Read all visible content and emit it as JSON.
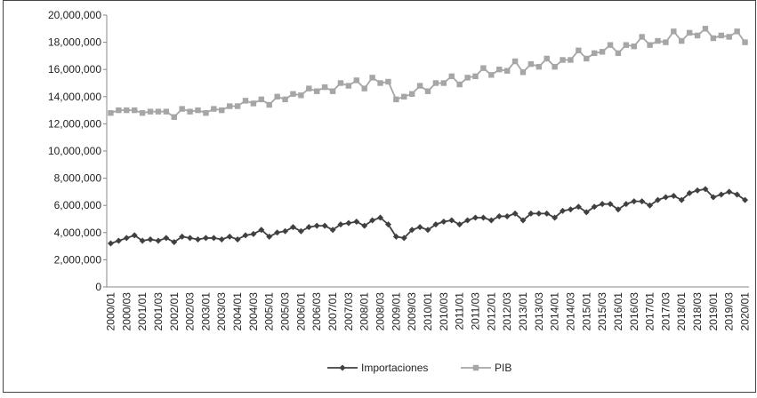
{
  "chart_data": {
    "type": "line",
    "categories": [
      "2000/01",
      null,
      "2000/03",
      null,
      "2001/01",
      null,
      "2001/03",
      null,
      "2002/01",
      null,
      "2002/03",
      null,
      "2003/01",
      null,
      "2003/03",
      null,
      "2004/01",
      null,
      "2004/03",
      null,
      "2005/01",
      null,
      "2005/03",
      null,
      "2006/01",
      null,
      "2006/03",
      null,
      "2007/01",
      null,
      "2007/03",
      null,
      "2008/01",
      null,
      "2008/03",
      null,
      "2009/01",
      null,
      "2009/03",
      null,
      "2010/01",
      null,
      "2010/03",
      null,
      "2011/01",
      null,
      "2011/03",
      null,
      "2012/01",
      null,
      "2012/03",
      null,
      "2013/01",
      null,
      "2013/03",
      null,
      "2014/01",
      null,
      "2014/03",
      null,
      "2015/01",
      null,
      "2015/03",
      null,
      "2016/01",
      null,
      "2016/03",
      null,
      "2017/01",
      null,
      "2017/03",
      null,
      "2018/01",
      null,
      "2018/03",
      null,
      "2019/01",
      null,
      "2019/03",
      null,
      "2020/01"
    ],
    "series": [
      {
        "name": "Importaciones",
        "color": "#404040",
        "marker": "diamond",
        "values": [
          3200000,
          3400000,
          3600000,
          3800000,
          3400000,
          3500000,
          3400000,
          3600000,
          3300000,
          3700000,
          3600000,
          3500000,
          3600000,
          3600000,
          3500000,
          3700000,
          3500000,
          3800000,
          3900000,
          4200000,
          3700000,
          4000000,
          4100000,
          4400000,
          4100000,
          4400000,
          4500000,
          4500000,
          4200000,
          4600000,
          4700000,
          4800000,
          4500000,
          4900000,
          5100000,
          4600000,
          3700000,
          3600000,
          4200000,
          4400000,
          4200000,
          4600000,
          4800000,
          4900000,
          4600000,
          4900000,
          5100000,
          5100000,
          4900000,
          5200000,
          5200000,
          5400000,
          4900000,
          5400000,
          5400000,
          5400000,
          5100000,
          5600000,
          5700000,
          5900000,
          5500000,
          5900000,
          6100000,
          6100000,
          5700000,
          6100000,
          6300000,
          6300000,
          6000000,
          6400000,
          6600000,
          6700000,
          6400000,
          6900000,
          7100000,
          7200000,
          6600000,
          6800000,
          7000000,
          6800000,
          6400000
        ]
      },
      {
        "name": "PIB",
        "color": "#a6a6a6",
        "marker": "square",
        "values": [
          12800000,
          13000000,
          13000000,
          13000000,
          12800000,
          12900000,
          12900000,
          12900000,
          12500000,
          13100000,
          12900000,
          13000000,
          12800000,
          13100000,
          13000000,
          13300000,
          13300000,
          13700000,
          13500000,
          13800000,
          13400000,
          14000000,
          13800000,
          14200000,
          14100000,
          14600000,
          14400000,
          14700000,
          14400000,
          15000000,
          14800000,
          15200000,
          14600000,
          15400000,
          15000000,
          15100000,
          13800000,
          14000000,
          14200000,
          14800000,
          14400000,
          15000000,
          15000000,
          15500000,
          14900000,
          15400000,
          15500000,
          16100000,
          15600000,
          16000000,
          15900000,
          16600000,
          15800000,
          16400000,
          16200000,
          16800000,
          16200000,
          16700000,
          16700000,
          17400000,
          16800000,
          17200000,
          17300000,
          17800000,
          17200000,
          17800000,
          17700000,
          18400000,
          17800000,
          18100000,
          18000000,
          18800000,
          18100000,
          18700000,
          18500000,
          19000000,
          18300000,
          18500000,
          18400000,
          18800000,
          18000000
        ]
      }
    ],
    "ylim": [
      0,
      20000000
    ],
    "yticks": [
      0,
      {
        "value": 2000000,
        "label": "2,000,000"
      },
      {
        "value": 4000000,
        "label": "4,000,000"
      },
      {
        "value": 6000000,
        "label": "6,000,000"
      },
      {
        "value": 8000000,
        "label": "8,000,000"
      },
      {
        "value": 10000000,
        "label": "10,000,000"
      },
      {
        "value": 12000000,
        "label": "12,000,000"
      },
      {
        "value": 14000000,
        "label": "14,000,000"
      },
      {
        "value": 16000000,
        "label": "16,000,000"
      },
      {
        "value": 18000000,
        "label": "18,000,000"
      },
      {
        "value": 20000000,
        "label": "20,000,000"
      }
    ],
    "grid": false
  }
}
